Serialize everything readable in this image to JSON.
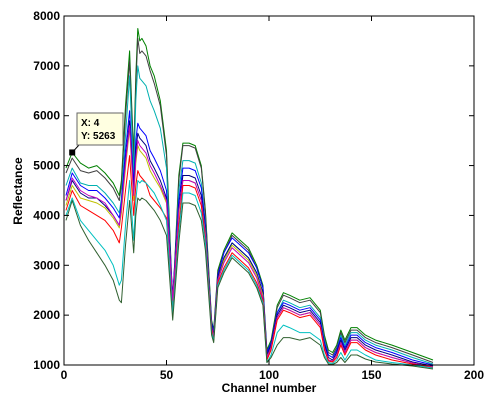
{
  "chart_data": {
    "type": "line",
    "xlabel": "Channel number",
    "ylabel": "Reflectance",
    "xlim": [
      0,
      200
    ],
    "ylim": [
      1000,
      8000
    ],
    "xticks": [
      0,
      50,
      100,
      150,
      200
    ],
    "yticks": [
      1000,
      2000,
      3000,
      4000,
      5000,
      6000,
      7000,
      8000
    ],
    "x_tick_labels": [
      "0",
      "50",
      "100",
      "150",
      "200"
    ],
    "y_tick_labels": [
      "1000",
      "2000",
      "3000",
      "4000",
      "5000",
      "6000",
      "7000",
      "8000"
    ],
    "grid": false,
    "legend": "none",
    "datatip": {
      "x": 4,
      "y": 5263,
      "x_text": "X: 4",
      "y_text": "Y: 5263"
    },
    "x": [
      1,
      4,
      8,
      12,
      16,
      20,
      24,
      27,
      28,
      30,
      32,
      34,
      35,
      36,
      37,
      38,
      40,
      42,
      44,
      47,
      50,
      53,
      56,
      58,
      61,
      64,
      67,
      69,
      72,
      73,
      75,
      78,
      82,
      86,
      90,
      94,
      97,
      99,
      101,
      104,
      107,
      110,
      115,
      120,
      125,
      127,
      129,
      131,
      133,
      135,
      137,
      140,
      143,
      147,
      152,
      160,
      170,
      180
    ],
    "series": [
      {
        "color": "#008000",
        "values": [
          4950,
          5263,
          5050,
          4950,
          5000,
          4850,
          4650,
          4400,
          4700,
          6200,
          7300,
          5200,
          6800,
          7750,
          7500,
          7550,
          7400,
          7000,
          6800,
          6300,
          5300,
          2200,
          4800,
          5450,
          5450,
          5400,
          5000,
          4100,
          1900,
          1700,
          2900,
          3300,
          3650,
          3500,
          3350,
          3000,
          2600,
          1300,
          1500,
          2200,
          2450,
          2400,
          2300,
          2350,
          2100,
          1600,
          1300,
          1250,
          1400,
          1700,
          1500,
          1750,
          1750,
          1600,
          1500,
          1400,
          1250,
          1100
        ]
      },
      {
        "color": "#404040",
        "values": [
          4850,
          5150,
          4900,
          4850,
          4900,
          4750,
          4550,
          4300,
          4600,
          6000,
          7100,
          5100,
          6600,
          7550,
          7250,
          7300,
          7200,
          6900,
          6650,
          6200,
          5200,
          2150,
          4700,
          5400,
          5400,
          5350,
          4950,
          4050,
          1850,
          1650,
          2850,
          3250,
          3600,
          3450,
          3300,
          2950,
          2550,
          1250,
          1450,
          2150,
          2400,
          2350,
          2250,
          2300,
          2050,
          1550,
          1250,
          1200,
          1350,
          1650,
          1450,
          1700,
          1700,
          1550,
          1450,
          1350,
          1200,
          1050
        ]
      },
      {
        "color": "#00b0b0",
        "values": [
          4600,
          4950,
          4650,
          4600,
          4600,
          4450,
          4250,
          4050,
          4350,
          5600,
          6800,
          4800,
          6300,
          7000,
          6750,
          6700,
          6600,
          6300,
          6100,
          5750,
          4950,
          2100,
          4500,
          5100,
          5100,
          5050,
          4650,
          3850,
          1800,
          1600,
          2750,
          3100,
          3450,
          3300,
          3150,
          2850,
          2450,
          1200,
          1400,
          2050,
          2300,
          2250,
          2150,
          2200,
          1950,
          1500,
          1200,
          1150,
          1300,
          1600,
          1400,
          1650,
          1650,
          1500,
          1400,
          1300,
          1150,
          1020
        ]
      },
      {
        "color": "#0000ff",
        "values": [
          4400,
          4850,
          4600,
          4500,
          4500,
          4350,
          4150,
          3950,
          4250,
          5300,
          6100,
          4600,
          5500,
          5850,
          5750,
          5700,
          5600,
          5300,
          5150,
          4900,
          4500,
          2400,
          4300,
          4950,
          4950,
          4900,
          4550,
          3800,
          1850,
          1650,
          2800,
          3250,
          3550,
          3400,
          3250,
          2950,
          2550,
          1250,
          1450,
          2050,
          2250,
          2200,
          2100,
          2150,
          1900,
          1450,
          1200,
          1150,
          1300,
          1550,
          1350,
          1600,
          1600,
          1450,
          1350,
          1250,
          1100,
          1000
        ]
      },
      {
        "color": "#000080",
        "values": [
          4300,
          4700,
          4450,
          4350,
          4350,
          4200,
          4000,
          3800,
          4100,
          5100,
          5900,
          4450,
          5300,
          5650,
          5550,
          5500,
          5400,
          5100,
          4950,
          4700,
          4350,
          2350,
          4150,
          4800,
          4800,
          4750,
          4400,
          3700,
          1800,
          1600,
          2750,
          3150,
          3450,
          3300,
          3150,
          2850,
          2450,
          1200,
          1400,
          2000,
          2200,
          2150,
          2050,
          2100,
          1850,
          1400,
          1150,
          1100,
          1250,
          1500,
          1300,
          1550,
          1550,
          1400,
          1300,
          1200,
          1060,
          980
        ]
      },
      {
        "color": "#c0c000",
        "values": [
          4200,
          4600,
          4350,
          4300,
          4250,
          4150,
          3950,
          3750,
          4050,
          4950,
          5750,
          4300,
          5050,
          5400,
          5300,
          5250,
          5150,
          4900,
          4750,
          4550,
          4250,
          2300,
          4050,
          4700,
          4700,
          4650,
          4300,
          3650,
          1750,
          1550,
          2700,
          3100,
          3400,
          3250,
          3100,
          2800,
          2400,
          1150,
          1350,
          1950,
          2150,
          2100,
          2000,
          2050,
          1800,
          1350,
          1100,
          1080,
          1200,
          1450,
          1250,
          1500,
          1500,
          1350,
          1250,
          1150,
          1040,
          960
        ]
      },
      {
        "color": "#c000c0",
        "values": [
          4300,
          4750,
          4500,
          4400,
          4350,
          4250,
          4000,
          3800,
          4150,
          5050,
          5800,
          4400,
          5150,
          5500,
          5400,
          5350,
          5250,
          5000,
          4850,
          4600,
          4300,
          2300,
          4100,
          4700,
          4700,
          4650,
          4300,
          3600,
          1750,
          1550,
          2700,
          3050,
          3350,
          3200,
          3050,
          2750,
          2350,
          1150,
          1350,
          1950,
          2150,
          2100,
          2000,
          2050,
          1800,
          1350,
          1100,
          1080,
          1200,
          1450,
          1250,
          1500,
          1500,
          1350,
          1250,
          1150,
          1040,
          960
        ]
      },
      {
        "color": "#ff0000",
        "values": [
          4100,
          4500,
          4200,
          4100,
          4000,
          3900,
          3700,
          3450,
          3750,
          4500,
          5200,
          4000,
          4600,
          4900,
          4800,
          4750,
          4650,
          4400,
          4300,
          4150,
          3950,
          2000,
          3800,
          4600,
          4600,
          4550,
          4200,
          3500,
          1700,
          1500,
          2650,
          2950,
          3250,
          3100,
          2950,
          2650,
          2300,
          1100,
          1300,
          1900,
          2100,
          2050,
          1950,
          2000,
          1750,
          1300,
          1080,
          1060,
          1150,
          1400,
          1200,
          1450,
          1450,
          1300,
          1200,
          1100,
          1020,
          950
        ]
      },
      {
        "color": "#00c0c0",
        "values": [
          4000,
          4350,
          3900,
          3700,
          3500,
          3300,
          3000,
          2600,
          2700,
          3800,
          4700,
          3500,
          4300,
          4700,
          4650,
          4700,
          4650,
          4550,
          4450,
          4200,
          3900,
          2000,
          3650,
          4450,
          4450,
          4400,
          4050,
          3450,
          1650,
          1500,
          2600,
          2900,
          3200,
          3050,
          2900,
          2600,
          2250,
          1050,
          1200,
          1650,
          1800,
          1750,
          1650,
          1650,
          1500,
          1200,
          1050,
          1030,
          1100,
          1250,
          1100,
          1300,
          1300,
          1200,
          1100,
          1050,
          1000,
          940
        ]
      },
      {
        "color": "#306030",
        "values": [
          3900,
          4300,
          3800,
          3500,
          3250,
          3000,
          2700,
          2300,
          2250,
          3400,
          4300,
          3250,
          4000,
          4350,
          4300,
          4350,
          4300,
          4200,
          4100,
          3900,
          3600,
          1900,
          3450,
          4250,
          4250,
          4200,
          3900,
          3300,
          1600,
          1450,
          2550,
          2850,
          3150,
          3000,
          2850,
          2550,
          2200,
          1050,
          1150,
          1400,
          1550,
          1550,
          1500,
          1550,
          1400,
          1150,
          1020,
          1010,
          1050,
          1150,
          1050,
          1200,
          1200,
          1120,
          1060,
          1020,
          980,
          920
        ]
      }
    ]
  }
}
